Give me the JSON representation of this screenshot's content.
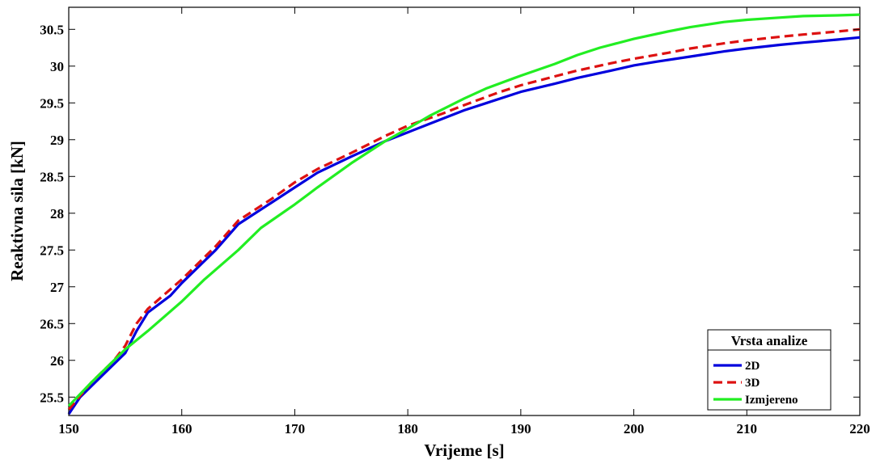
{
  "chart_data": {
    "type": "line",
    "xlabel": "Vrijeme [s]",
    "ylabel": "Reaktivna sila [kN]",
    "xlim": [
      150,
      220
    ],
    "ylim": [
      25.25,
      30.8
    ],
    "xticks": [
      150,
      160,
      170,
      180,
      190,
      200,
      210,
      220
    ],
    "yticks": [
      25.5,
      26,
      26.5,
      27,
      27.5,
      28,
      28.5,
      29,
      29.5,
      30,
      30.5
    ],
    "ytick_labels": [
      "25.5",
      "26",
      "26.5",
      "27",
      "27.5",
      "28",
      "28.5",
      "29",
      "29.5",
      "30",
      "30.5"
    ],
    "grid": false,
    "legend": {
      "title": "Vrsta analize",
      "position": "bottom-right"
    },
    "series": [
      {
        "name": "2D",
        "color": "#0000dd",
        "dash": "solid",
        "x": [
          150,
          151,
          153,
          155,
          156,
          157,
          159,
          160,
          163,
          165,
          168,
          170,
          172,
          175,
          178,
          180,
          182,
          185,
          187,
          190,
          193,
          195,
          198,
          200,
          202,
          205,
          208,
          210,
          213,
          215,
          218,
          220
        ],
        "y": [
          25.27,
          25.5,
          25.8,
          26.1,
          26.4,
          26.65,
          26.88,
          27.05,
          27.5,
          27.85,
          28.15,
          28.35,
          28.55,
          28.77,
          28.98,
          29.1,
          29.22,
          29.4,
          29.5,
          29.65,
          29.76,
          29.84,
          29.94,
          30.01,
          30.06,
          30.13,
          30.2,
          30.24,
          30.29,
          30.32,
          30.36,
          30.39
        ]
      },
      {
        "name": "3D",
        "color": "#dd1111",
        "dash": "dashed",
        "x": [
          150,
          152,
          154,
          155,
          156,
          157,
          160,
          163,
          165,
          168,
          170,
          172,
          175,
          178,
          180,
          183,
          185,
          188,
          190,
          193,
          195,
          198,
          200,
          203,
          205,
          208,
          210,
          213,
          215,
          218,
          220
        ],
        "y": [
          25.33,
          25.7,
          26.0,
          26.2,
          26.5,
          26.7,
          27.1,
          27.55,
          27.9,
          28.2,
          28.42,
          28.6,
          28.82,
          29.05,
          29.19,
          29.35,
          29.47,
          29.64,
          29.74,
          29.86,
          29.94,
          30.04,
          30.1,
          30.18,
          30.24,
          30.31,
          30.35,
          30.4,
          30.43,
          30.47,
          30.5
        ]
      },
      {
        "name": "Izmjereno",
        "color": "#22ee22",
        "dash": "solid",
        "x": [
          150,
          152,
          155,
          157,
          160,
          162,
          165,
          167,
          170,
          172,
          175,
          178,
          180,
          182,
          185,
          187,
          190,
          193,
          195,
          197,
          200,
          203,
          205,
          208,
          210,
          213,
          215,
          218,
          220
        ],
        "y": [
          25.38,
          25.7,
          26.15,
          26.4,
          26.8,
          27.1,
          27.5,
          27.8,
          28.12,
          28.35,
          28.68,
          28.98,
          29.15,
          29.33,
          29.56,
          29.7,
          29.87,
          30.03,
          30.15,
          30.25,
          30.37,
          30.47,
          30.53,
          30.6,
          30.63,
          30.66,
          30.68,
          30.69,
          30.7
        ]
      }
    ]
  }
}
